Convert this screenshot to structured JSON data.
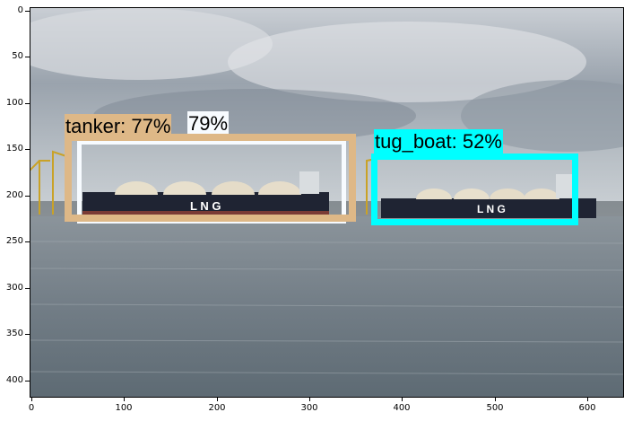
{
  "image": {
    "description": "harbor with two LNG carrier ships under overcast sky",
    "hull_text": "L N G",
    "sky_color": "#9aa3ad",
    "water_color": "#6f7a83",
    "hull_color": "#1f2433"
  },
  "detections": [
    {
      "label_text": "79%",
      "color": "#f7fbff"
    },
    {
      "label_text": "tanker: 77%",
      "color": "#deb887"
    },
    {
      "label_text": "tug_boat: 52%",
      "color": "#00ffff"
    }
  ],
  "axes": {
    "y_ticks": [
      "0",
      "50",
      "100",
      "150",
      "200",
      "250",
      "300",
      "350",
      "400"
    ],
    "x_ticks": [
      "0",
      "100",
      "200",
      "300",
      "400",
      "500",
      "600"
    ]
  }
}
